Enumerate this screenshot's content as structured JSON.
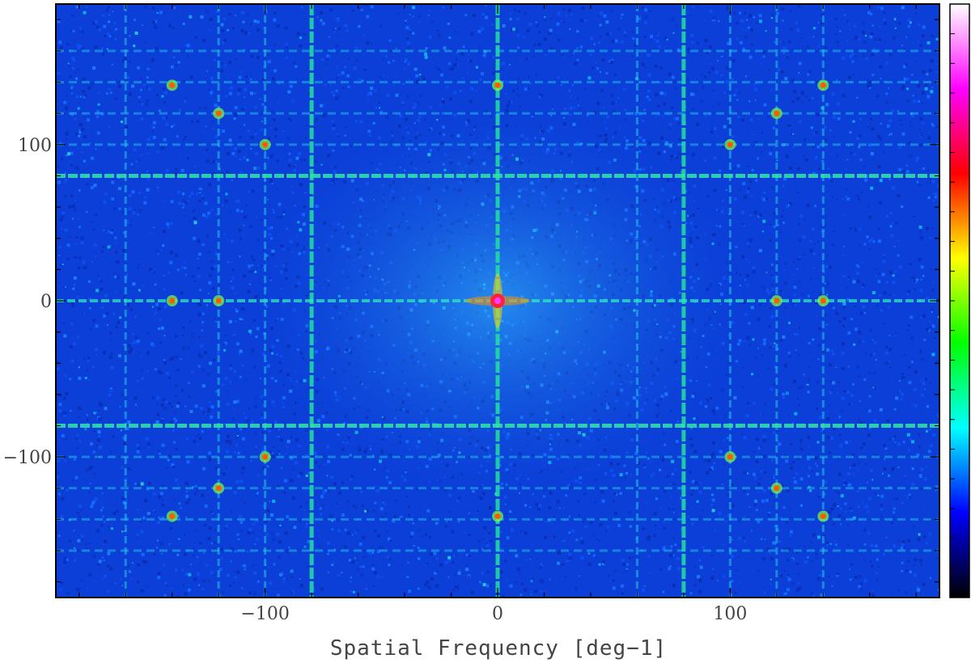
{
  "chart_data": {
    "type": "heatmap",
    "title": "",
    "xlabel": "Spatial Frequency [deg−1]",
    "ylabel": "",
    "xlim": [
      -190,
      190
    ],
    "ylim": [
      -190,
      190
    ],
    "x_ticks": [
      {
        "value": -100,
        "label": "−100"
      },
      {
        "value": 0,
        "label": "0"
      },
      {
        "value": 100,
        "label": "100"
      }
    ],
    "y_ticks": [
      {
        "value": 100,
        "label": "100"
      },
      {
        "value": 0,
        "label": "0"
      },
      {
        "value": -100,
        "label": "−100"
      }
    ],
    "grid": false,
    "colorbar": {
      "present": true,
      "colors": [
        "#000000",
        "#0000ff",
        "#00ffff",
        "#00ff00",
        "#ffff00",
        "#ff0000",
        "#ff00ff",
        "#ffffff"
      ],
      "labels": []
    },
    "background_color": "#0b3fd8",
    "features": {
      "center_peak": [
        0,
        0
      ],
      "vertical_lines": [
        -160,
        -120,
        -100,
        -80,
        0,
        60,
        80,
        100,
        120,
        140
      ],
      "horizontal_lines": [
        160,
        140,
        120,
        100,
        80,
        -80,
        -100,
        -120,
        -140,
        -160
      ],
      "bright_horizontal_lines": [
        80,
        -80
      ],
      "bright_vertical_lines": [
        -80,
        0,
        80
      ],
      "peaks": [
        [
          -140,
          138
        ],
        [
          0,
          138
        ],
        [
          140,
          138
        ],
        [
          -140,
          0
        ],
        [
          -120,
          0
        ],
        [
          120,
          0
        ],
        [
          140,
          0
        ],
        [
          -140,
          -138
        ],
        [
          0,
          -138
        ],
        [
          140,
          -138
        ],
        [
          -120,
          120
        ],
        [
          120,
          120
        ],
        [
          -120,
          -120
        ],
        [
          120,
          -120
        ],
        [
          -100,
          100
        ],
        [
          100,
          100
        ],
        [
          -100,
          -100
        ],
        [
          100,
          -100
        ]
      ]
    }
  }
}
